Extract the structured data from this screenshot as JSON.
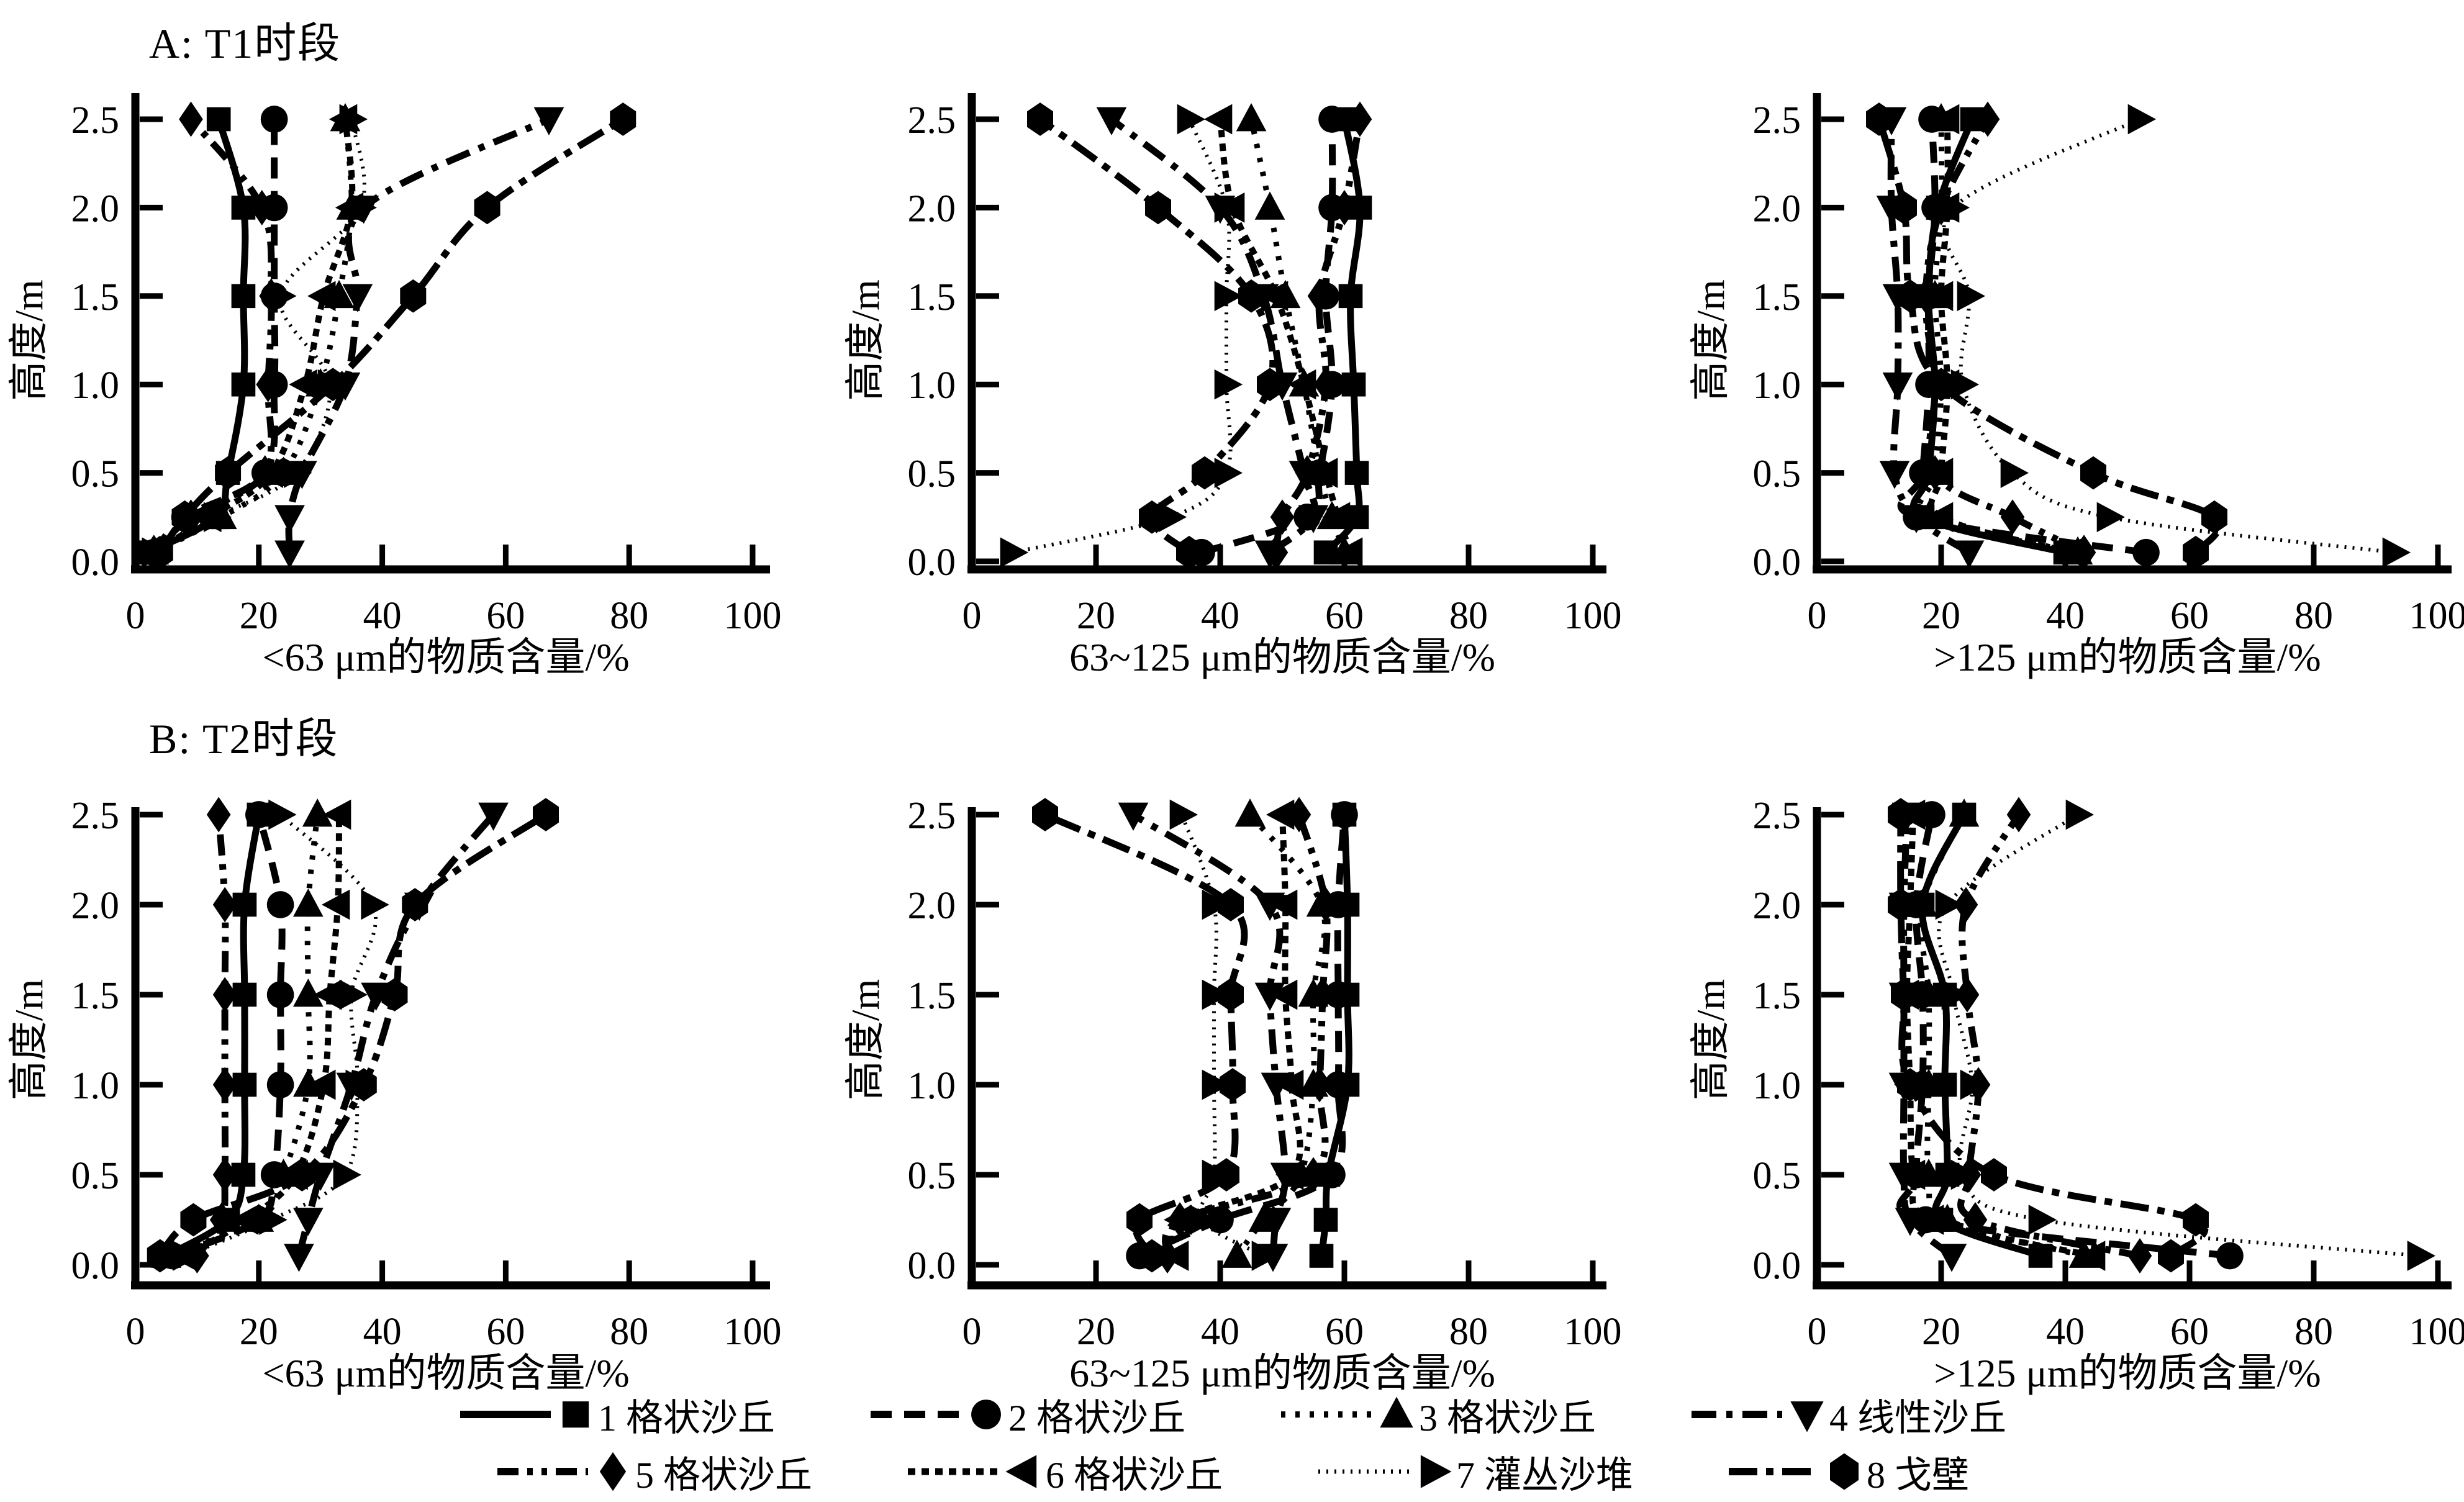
{
  "figure": {
    "panel_a_title": "A: T1时段",
    "panel_b_title": "B: T2时段",
    "background": "#ffffff",
    "ink": "#000000"
  },
  "axes": {
    "ylabel": "高度/m",
    "y_ticks": [
      "0.0",
      "0.5",
      "1.0",
      "1.5",
      "2.0",
      "2.5"
    ],
    "x_ticks": [
      "0",
      "20",
      "40",
      "60",
      "80",
      "100"
    ],
    "xlim": [
      0,
      100
    ],
    "ylim": [
      0,
      2.5
    ],
    "grid": "off"
  },
  "legend": {
    "position": "bottom-center",
    "items": [
      {
        "label": "1 格状沙丘",
        "marker": "square",
        "line": "solid"
      },
      {
        "label": "2 格状沙丘",
        "marker": "circle",
        "line": "dash"
      },
      {
        "label": "3 格状沙丘",
        "marker": "triangle-up",
        "line": "dot"
      },
      {
        "label": "4 线性沙丘",
        "marker": "triangle-down",
        "line": "dashdot"
      },
      {
        "label": "5 格状沙丘",
        "marker": "diamond",
        "line": "dashdotdot"
      },
      {
        "label": "6 格状沙丘",
        "marker": "triangle-left",
        "line": "densedot"
      },
      {
        "label": "7 灌丛沙堆",
        "marker": "triangle-right",
        "line": "finedot"
      },
      {
        "label": "8 戈壁",
        "marker": "hexagon",
        "line": "longdashdot"
      }
    ]
  },
  "chart_data": [
    {
      "id": "A1",
      "panel": "A",
      "row": "A",
      "col": 0,
      "type": "scatter",
      "title": "A: T1时段",
      "xlabel": "<63 μm的物质含量/%",
      "ylabel": "高度/m",
      "xlim": [
        0,
        100
      ],
      "ylim": [
        0,
        2.5
      ],
      "heights_m": [
        0.05,
        0.25,
        0.5,
        1.0,
        1.5,
        2.0,
        2.5
      ],
      "series": [
        {
          "name": "1 格状沙丘",
          "marker": "square",
          "line": "solid",
          "values": [
            2,
            13,
            15,
            17.5,
            17.5,
            17.5,
            13.5
          ]
        },
        {
          "name": "2 格状沙丘",
          "marker": "circle",
          "line": "dash",
          "values": [
            3,
            8,
            21,
            22.5,
            22.5,
            22.5,
            22.5
          ]
        },
        {
          "name": "3 格状沙丘",
          "marker": "triangle-up",
          "line": "dot",
          "values": [
            3,
            14,
            24,
            30,
            33,
            35,
            34
          ]
        },
        {
          "name": "4 线性沙丘",
          "marker": "triangle-down",
          "line": "dashdot",
          "values": [
            25,
            25,
            27,
            34,
            36,
            37,
            67
          ]
        },
        {
          "name": "5 格状沙丘",
          "marker": "diamond",
          "line": "dashdotdot",
          "values": [
            3,
            9,
            21,
            21.5,
            22,
            20.5,
            9
          ]
        },
        {
          "name": "6 格状沙丘",
          "marker": "triangle-left",
          "line": "densedot",
          "values": [
            3,
            12,
            22,
            27.5,
            30.5,
            35,
            34
          ]
        },
        {
          "name": "7 灌丛沙堆",
          "marker": "triangle-right",
          "line": "finedot",
          "values": [
            3,
            13,
            26,
            31.5,
            23.5,
            36.5,
            35
          ]
        },
        {
          "name": "8 戈壁",
          "marker": "hexagon",
          "line": "longdashdot",
          "values": [
            4,
            8,
            15,
            32,
            45,
            57,
            79
          ]
        }
      ]
    },
    {
      "id": "A2",
      "panel": "A",
      "row": "A",
      "col": 1,
      "type": "scatter",
      "title": "A: T1时段",
      "xlabel": "63~125 μm的物质含量/%",
      "ylabel": "高度/m",
      "xlim": [
        0,
        100
      ],
      "ylim": [
        0,
        2.5
      ],
      "heights_m": [
        0.05,
        0.25,
        0.5,
        1.0,
        1.5,
        2.0,
        2.5
      ],
      "series": [
        {
          "name": "1 格状沙丘",
          "marker": "square",
          "line": "solid",
          "values": [
            57,
            62,
            62,
            61.5,
            61,
            62.5,
            60
          ]
        },
        {
          "name": "2 格状沙丘",
          "marker": "circle",
          "line": "dash",
          "values": [
            37,
            54,
            56,
            58,
            57,
            58,
            58
          ]
        },
        {
          "name": "3 格状沙丘",
          "marker": "triangle-up",
          "line": "dot",
          "values": [
            60,
            58,
            56,
            53.5,
            50.5,
            48,
            45
          ]
        },
        {
          "name": "4 线性沙丘",
          "marker": "triangle-down",
          "line": "dashdot",
          "values": [
            48,
            55,
            53.5,
            50,
            47,
            40,
            22.5
          ]
        },
        {
          "name": "5 格状沙丘",
          "marker": "diamond",
          "line": "dashdotdot",
          "values": [
            49,
            50,
            54,
            57,
            56,
            60,
            62.5
          ]
        },
        {
          "name": "6 格状沙丘",
          "marker": "triangle-left",
          "line": "densedot",
          "values": [
            61,
            59,
            57,
            53.5,
            49,
            42,
            40
          ]
        },
        {
          "name": "7 灌丛沙堆",
          "marker": "triangle-right",
          "line": "finedot",
          "values": [
            6.5,
            32,
            41,
            41,
            41,
            41,
            35
          ]
        },
        {
          "name": "8 戈壁",
          "marker": "hexagon",
          "line": "longdashdot",
          "values": [
            35,
            29,
            37.5,
            48,
            45,
            30,
            11
          ]
        }
      ]
    },
    {
      "id": "A3",
      "panel": "A",
      "row": "A",
      "col": 2,
      "type": "scatter",
      "title": "A: T1时段",
      "xlabel": ">125 μm的物质含量/%",
      "ylabel": "高度/m",
      "xlim": [
        0,
        100
      ],
      "ylim": [
        0,
        2.5
      ],
      "heights_m": [
        0.05,
        0.25,
        0.5,
        1.0,
        1.5,
        2.0,
        2.5
      ],
      "series": [
        {
          "name": "1 格状沙丘",
          "marker": "square",
          "line": "solid",
          "values": [
            40,
            17,
            18,
            19,
            18,
            19.5,
            25
          ]
        },
        {
          "name": "2 格状沙丘",
          "marker": "circle",
          "line": "dash",
          "values": [
            53,
            16,
            17,
            18,
            18,
            19,
            18.5
          ]
        },
        {
          "name": "3 格状沙丘",
          "marker": "triangle-up",
          "line": "dot",
          "values": [
            42,
            18,
            19,
            20,
            19,
            20,
            20
          ]
        },
        {
          "name": "4 线性沙丘",
          "marker": "triangle-down",
          "line": "dashdot",
          "values": [
            24.5,
            16,
            12.5,
            13,
            13,
            12,
            12
          ]
        },
        {
          "name": "5 格状沙丘",
          "marker": "diamond",
          "line": "dashdotdot",
          "values": [
            43,
            31.5,
            19,
            19,
            17.5,
            20,
            27.5
          ]
        },
        {
          "name": "6 格状沙丘",
          "marker": "triangle-left",
          "line": "densedot",
          "values": [
            41,
            20,
            20,
            21,
            20,
            21,
            21
          ]
        },
        {
          "name": "7 灌丛沙堆",
          "marker": "triangle-right",
          "line": "finedot",
          "values": [
            93,
            47,
            31.5,
            23.5,
            24.5,
            22,
            52
          ]
        },
        {
          "name": "8 戈壁",
          "marker": "hexagon",
          "line": "longdashdot",
          "values": [
            61,
            64,
            44.5,
            20,
            15,
            14,
            10
          ]
        }
      ]
    },
    {
      "id": "B1",
      "panel": "B",
      "row": "B",
      "col": 0,
      "type": "scatter",
      "title": "B: T2时段",
      "xlabel": "<63 μm的物质含量/%",
      "ylabel": "高度/m",
      "xlim": [
        0,
        100
      ],
      "ylim": [
        0,
        2.5
      ],
      "heights_m": [
        0.05,
        0.25,
        0.5,
        1.0,
        1.5,
        2.0,
        2.5
      ],
      "series": [
        {
          "name": "1 格状沙丘",
          "marker": "square",
          "line": "solid",
          "values": [
            5,
            15,
            17.5,
            17.7,
            17.7,
            17.7,
            20
          ]
        },
        {
          "name": "2 格状沙丘",
          "marker": "circle",
          "line": "dash",
          "values": [
            6,
            20,
            22.5,
            23.5,
            23.5,
            23.5,
            20
          ]
        },
        {
          "name": "3 格状沙丘",
          "marker": "triangle-up",
          "line": "dot",
          "values": [
            5,
            20,
            24,
            28,
            28,
            28,
            29.5
          ]
        },
        {
          "name": "4 线性沙丘",
          "marker": "triangle-down",
          "line": "dashdot",
          "values": [
            26.5,
            28,
            30,
            35,
            39,
            46,
            58
          ]
        },
        {
          "name": "5 格状沙丘",
          "marker": "diamond",
          "line": "dashdotdot",
          "values": [
            10,
            14,
            14.5,
            14.5,
            14.5,
            14.5,
            13.5
          ]
        },
        {
          "name": "6 格状沙丘",
          "marker": "triangle-left",
          "line": "densedot",
          "values": [
            8,
            18,
            26,
            30.5,
            31.5,
            32.8,
            33
          ]
        },
        {
          "name": "7 灌丛沙堆",
          "marker": "triangle-right",
          "line": "finedot",
          "values": [
            8,
            22,
            34,
            36,
            35,
            38.5,
            23.5
          ]
        },
        {
          "name": "8 戈壁",
          "marker": "hexagon",
          "line": "longdashdot",
          "values": [
            4,
            9.4,
            27,
            37,
            42,
            45.3,
            66.5
          ]
        }
      ]
    },
    {
      "id": "B2",
      "panel": "B",
      "row": "B",
      "col": 1,
      "type": "scatter",
      "title": "B: T2时段",
      "xlabel": "63~125 μm的物质含量/%",
      "ylabel": "高度/m",
      "xlim": [
        0,
        100
      ],
      "ylim": [
        0,
        2.5
      ],
      "heights_m": [
        0.05,
        0.25,
        0.5,
        1.0,
        1.5,
        2.0,
        2.5
      ],
      "series": [
        {
          "name": "1 格状沙丘",
          "marker": "square",
          "line": "solid",
          "values": [
            56.3,
            57,
            57.4,
            60.5,
            60.5,
            60.5,
            60
          ]
        },
        {
          "name": "2 格状沙丘",
          "marker": "circle",
          "line": "dash",
          "values": [
            27,
            40,
            58,
            59,
            59,
            59,
            60
          ]
        },
        {
          "name": "3 格状沙丘",
          "marker": "triangle-up",
          "line": "dot",
          "values": [
            42.7,
            47,
            53,
            55,
            55,
            56.3,
            44.8
          ]
        },
        {
          "name": "4 线性沙丘",
          "marker": "triangle-down",
          "line": "dashdot",
          "values": [
            48.5,
            49,
            50.5,
            49,
            48,
            48,
            26
          ]
        },
        {
          "name": "5 格状沙丘",
          "marker": "diamond",
          "line": "dashdotdot",
          "values": [
            31.5,
            33.5,
            55,
            56,
            56.5,
            57,
            52.7
          ]
        },
        {
          "name": "6 格状沙丘",
          "marker": "triangle-left",
          "line": "densedot",
          "values": [
            33,
            33.5,
            51.5,
            51.5,
            50.5,
            50.5,
            50
          ]
        },
        {
          "name": "7 灌丛沙堆",
          "marker": "triangle-right",
          "line": "finedot",
          "values": [
            47,
            37,
            39,
            39,
            39,
            39,
            33.8
          ]
        },
        {
          "name": "8 戈壁",
          "marker": "hexagon",
          "line": "longdashdot",
          "values": [
            29,
            27,
            41,
            42,
            41.7,
            41.7,
            11.8
          ]
        }
      ]
    },
    {
      "id": "B3",
      "panel": "B",
      "row": "B",
      "col": 2,
      "type": "scatter",
      "title": "B: T2时段",
      "xlabel": ">125 μm的物质含量/%",
      "ylabel": "高度/m",
      "xlim": [
        0,
        100
      ],
      "ylim": [
        0,
        2.5
      ],
      "heights_m": [
        0.05,
        0.25,
        0.5,
        1.0,
        1.5,
        2.0,
        2.5
      ],
      "series": [
        {
          "name": "1 格状沙丘",
          "marker": "square",
          "line": "solid",
          "values": [
            36,
            20,
            21,
            20.6,
            20.6,
            17,
            23.7
          ]
        },
        {
          "name": "2 格状沙丘",
          "marker": "circle",
          "line": "dash",
          "values": [
            66.5,
            17.5,
            16,
            17,
            17,
            16,
            18.5
          ]
        },
        {
          "name": "3 格状沙丘",
          "marker": "triangle-up",
          "line": "dot",
          "values": [
            43,
            21,
            18,
            18,
            18,
            17,
            23.7
          ]
        },
        {
          "name": "4 线性沙丘",
          "marker": "triangle-down",
          "line": "dashdot",
          "values": [
            21.7,
            15,
            14,
            14,
            14,
            14,
            14.5
          ]
        },
        {
          "name": "5 格状沙丘",
          "marker": "diamond",
          "line": "dashdotdot",
          "values": [
            52,
            25.5,
            24.5,
            26,
            24.2,
            24,
            32.5
          ]
        },
        {
          "name": "6 格状沙丘",
          "marker": "triangle-left",
          "line": "densedot",
          "values": [
            44.5,
            18.5,
            15.5,
            15,
            14.5,
            15,
            15.5
          ]
        },
        {
          "name": "7 灌丛沙堆",
          "marker": "triangle-right",
          "line": "finedot",
          "values": [
            97,
            36,
            23.5,
            25,
            22,
            21,
            42
          ]
        },
        {
          "name": "8 戈壁",
          "marker": "hexagon",
          "line": "longdashdot",
          "values": [
            57,
            61,
            28.5,
            15,
            14,
            13.5,
            13.5
          ]
        }
      ]
    }
  ]
}
